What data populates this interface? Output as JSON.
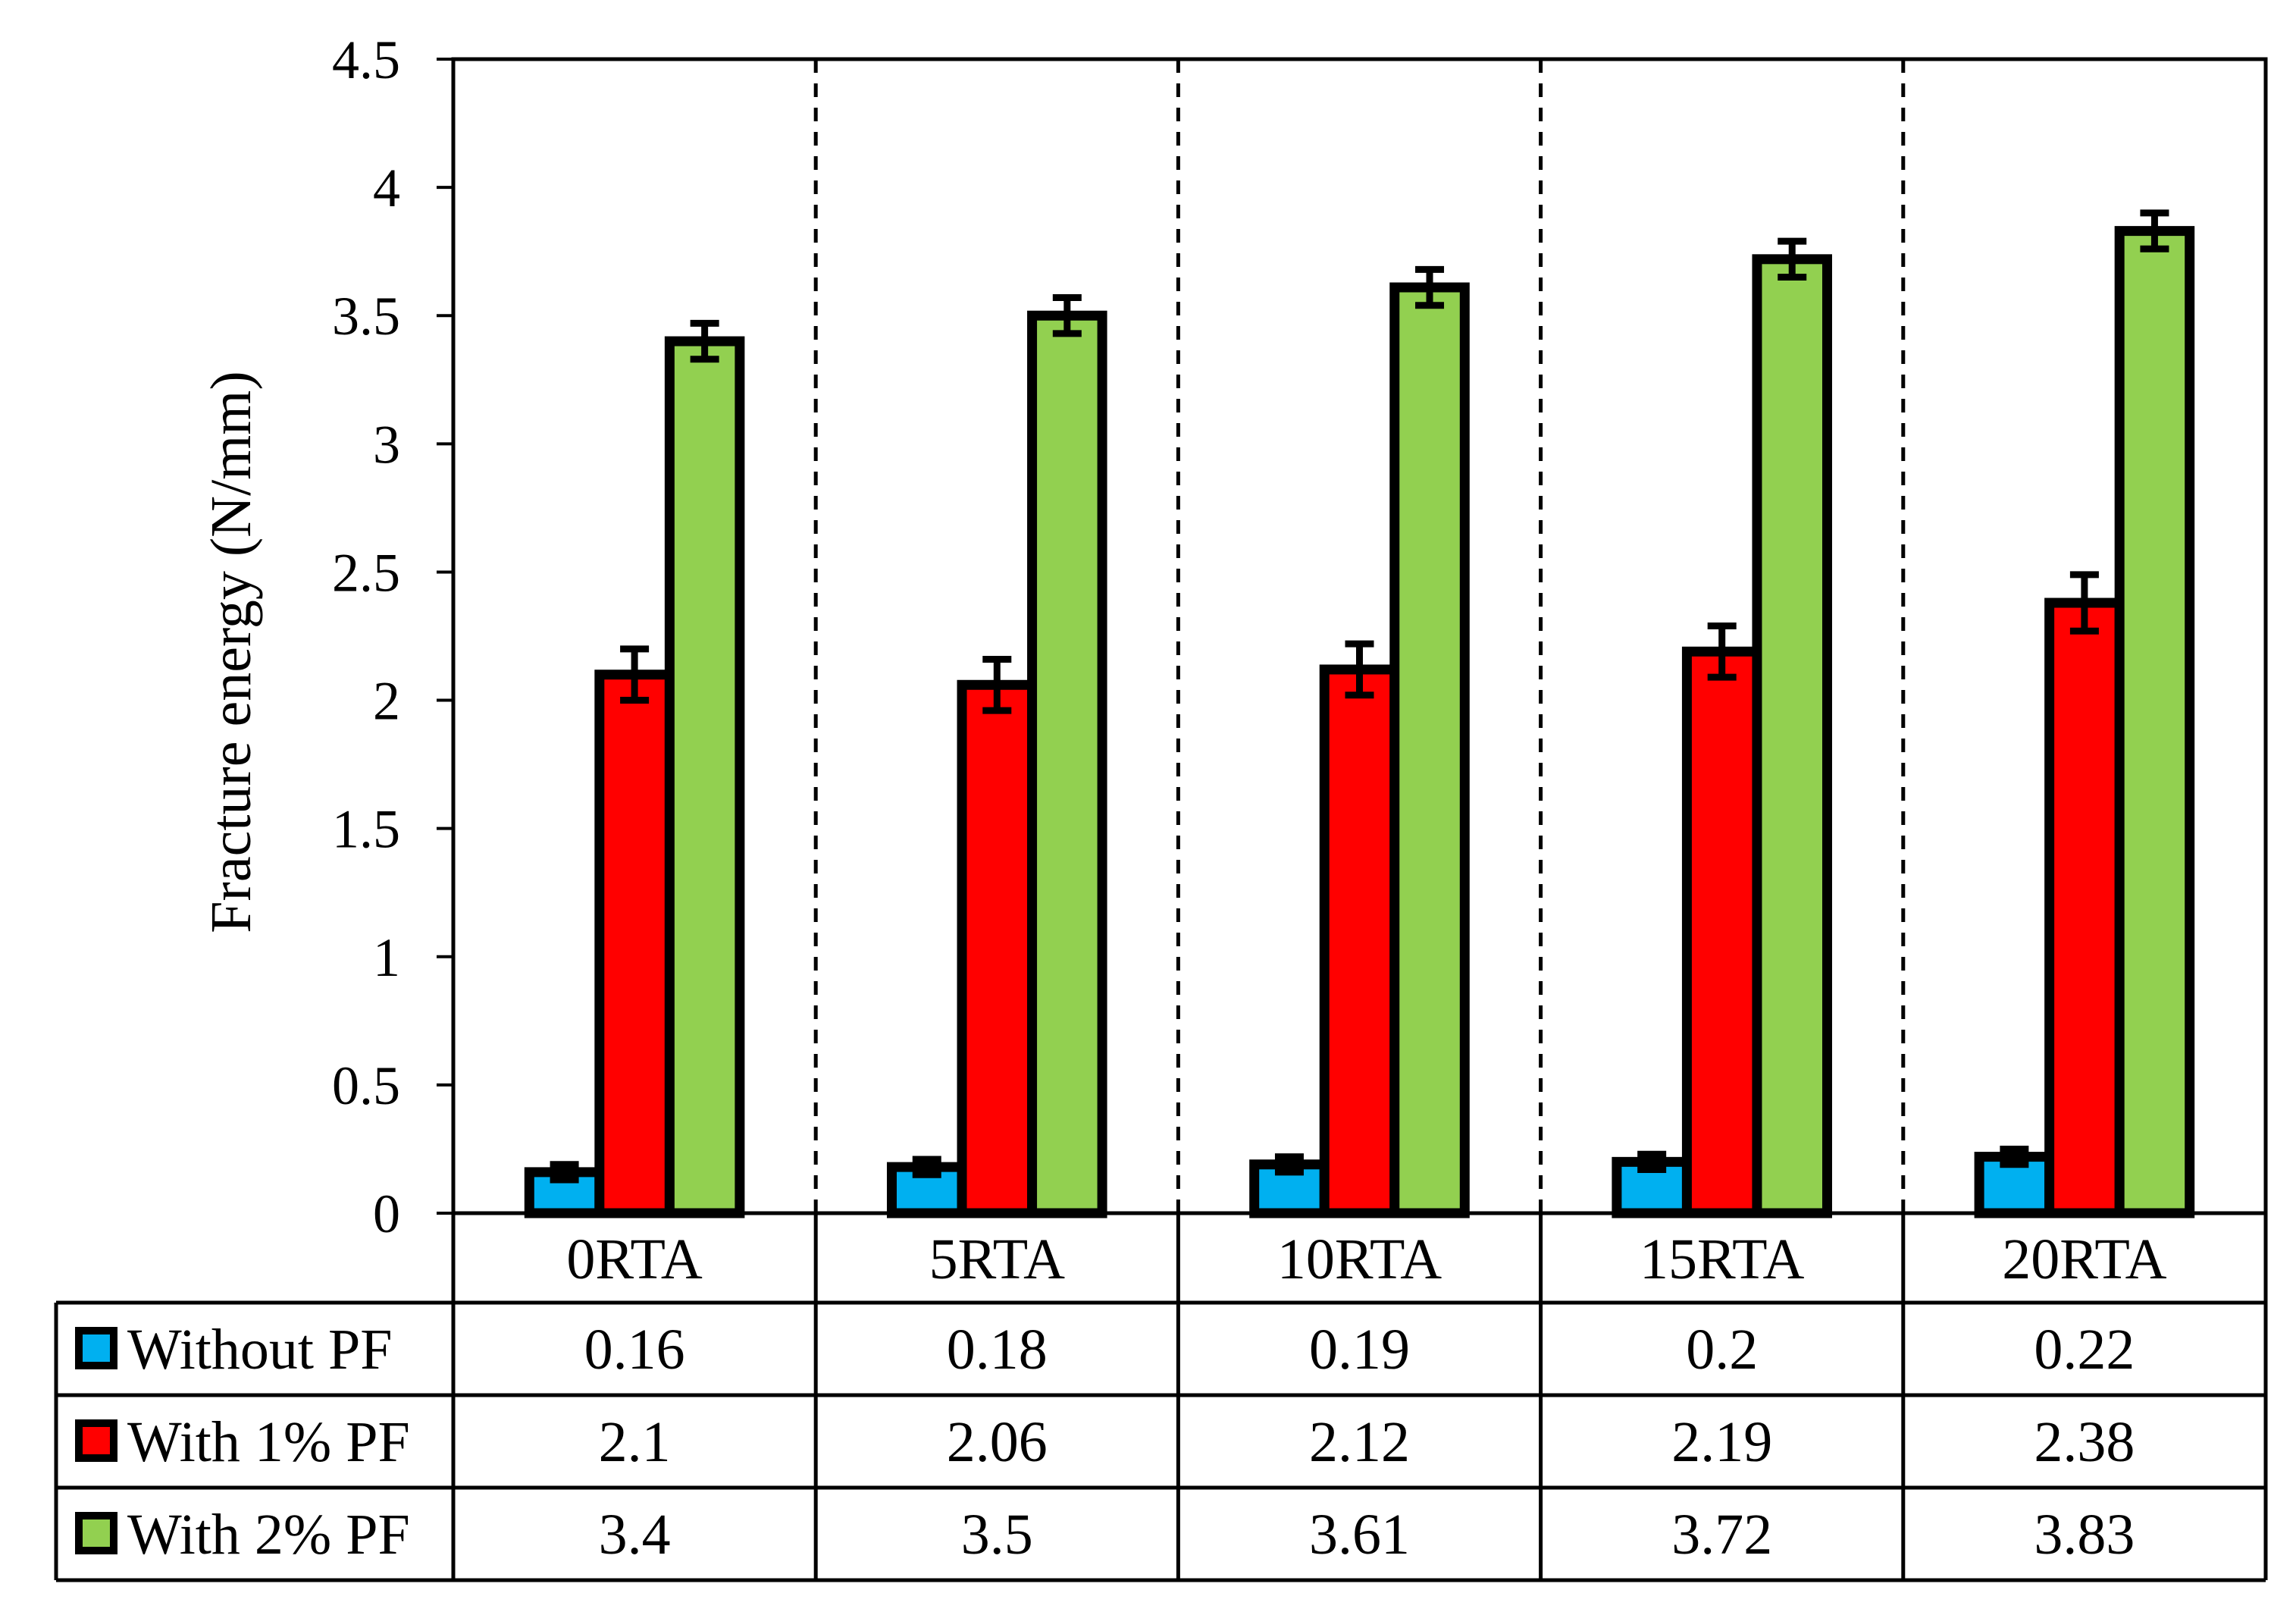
{
  "chart_data": {
    "type": "bar",
    "title": "",
    "xlabel": "",
    "ylabel": "Fracture energy (N/mm)",
    "ylim": [
      0,
      4.5
    ],
    "yticks": [
      "0",
      "0.5",
      "1",
      "1.5",
      "2",
      "2.5",
      "3",
      "3.5",
      "4",
      "4.5"
    ],
    "ytick_values": [
      0,
      0.5,
      1,
      1.5,
      2,
      2.5,
      3,
      3.5,
      4,
      4.5
    ],
    "categories": [
      "0RTA",
      "5RTA",
      "10RTA",
      "15RTA",
      "20RTA"
    ],
    "series": [
      {
        "name": "Without PF",
        "color": "#00b0f0",
        "values": [
          0.16,
          0.18,
          0.19,
          0.2,
          0.22
        ],
        "labels": [
          "0.16",
          "0.18",
          "0.19",
          "0.2",
          "0.22"
        ],
        "errors": [
          0.03,
          0.03,
          0.03,
          0.03,
          0.03
        ]
      },
      {
        "name": "With 1% PF",
        "color": "#ff0000",
        "values": [
          2.1,
          2.06,
          2.12,
          2.19,
          2.38
        ],
        "labels": [
          "2.1",
          "2.06",
          "2.12",
          "2.19",
          "2.38"
        ],
        "errors": [
          0.1,
          0.1,
          0.1,
          0.1,
          0.11
        ]
      },
      {
        "name": "With 2% PF",
        "color": "#92d050",
        "values": [
          3.4,
          3.5,
          3.61,
          3.72,
          3.83
        ],
        "labels": [
          "3.4",
          "3.5",
          "3.61",
          "3.72",
          "3.83"
        ],
        "errors": [
          0.07,
          0.07,
          0.07,
          0.07,
          0.07
        ]
      }
    ],
    "grid": false,
    "category_separators": "dashed",
    "legend": "data-table-below"
  }
}
